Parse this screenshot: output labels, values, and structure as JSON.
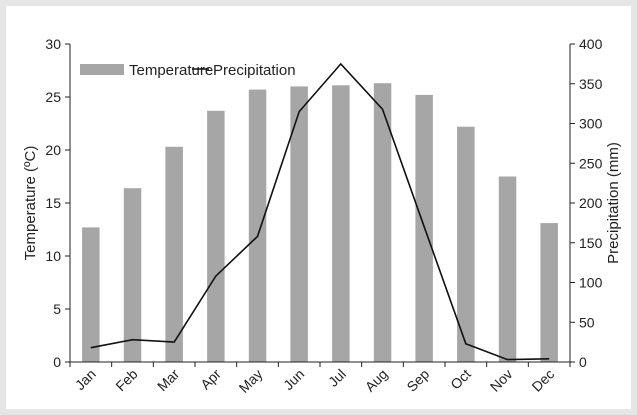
{
  "chart_data": {
    "type": "bar",
    "title": "",
    "categories": [
      "Jan",
      "Feb",
      "Mar",
      "Apr",
      "May",
      "Jun",
      "Jul",
      "Aug",
      "Sep",
      "Oct",
      "Nov",
      "Dec"
    ],
    "series": [
      {
        "name": "Temperature",
        "type": "bar",
        "axis": "left",
        "color": "#a6a6a6",
        "values": [
          12.7,
          16.4,
          20.3,
          23.7,
          25.7,
          26.0,
          26.1,
          26.3,
          25.2,
          22.2,
          17.5,
          13.1
        ]
      },
      {
        "name": "Precipitation",
        "type": "line",
        "axis": "right",
        "color": "#111111",
        "values": [
          18,
          28,
          25,
          108,
          158,
          315,
          375,
          318,
          170,
          23,
          3,
          4
        ]
      }
    ],
    "ylabel_left": "Temperature (ºC)",
    "ylabel_right": "Precipitation (mm)",
    "ylim_left": [
      0,
      30
    ],
    "ylim_right": [
      0,
      400
    ],
    "yticks_left": [
      0,
      5,
      10,
      15,
      20,
      25,
      30
    ],
    "yticks_right": [
      0,
      50,
      100,
      150,
      200,
      250,
      300,
      350,
      400
    ],
    "grid": false,
    "legend_position": "top-left"
  }
}
